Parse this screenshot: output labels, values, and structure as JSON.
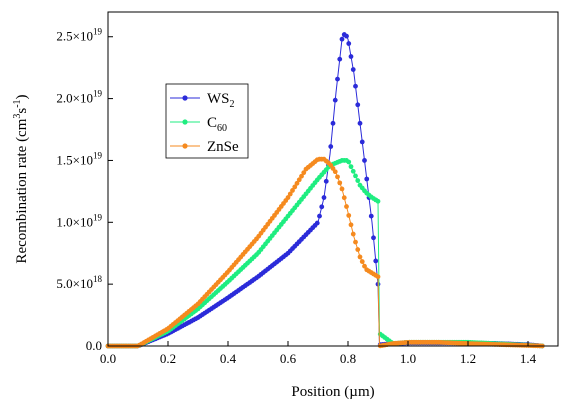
{
  "chart_data": {
    "type": "line",
    "xlabel": "Position (µm)",
    "ylabel_base": "Recombination rate (cm",
    "ylabel_sup1": "3",
    "ylabel_mid": "s",
    "ylabel_sup2": "-1",
    "ylabel_end": ")",
    "xlim": [
      0.0,
      1.5
    ],
    "ylim": [
      0,
      2.7e+19
    ],
    "grid": false,
    "legend_position": "upper-left",
    "x_ticks": [
      {
        "value": 0.0,
        "label": "0.0"
      },
      {
        "value": 0.2,
        "label": "0.2"
      },
      {
        "value": 0.4,
        "label": "0.4"
      },
      {
        "value": 0.6,
        "label": "0.6"
      },
      {
        "value": 0.8,
        "label": "0.8"
      },
      {
        "value": 1.0,
        "label": "1.0"
      },
      {
        "value": 1.2,
        "label": "1.2"
      },
      {
        "value": 1.4,
        "label": "1.4"
      }
    ],
    "y_ticks": [
      {
        "value": 0,
        "label": "0.0",
        "exp": ""
      },
      {
        "value": 5e+18,
        "label": "5.0×10",
        "exp": "18"
      },
      {
        "value": 1e+19,
        "label": "1.0×10",
        "exp": "19"
      },
      {
        "value": 1.5e+19,
        "label": "1.5×10",
        "exp": "19"
      },
      {
        "value": 2e+19,
        "label": "2.0×10",
        "exp": "19"
      },
      {
        "value": 2.5e+19,
        "label": "2.5×10",
        "exp": "19"
      }
    ],
    "series": [
      {
        "name": "WS",
        "name_sub": "2",
        "color": "#2b2bd9",
        "x": [
          0.0,
          0.1,
          0.2,
          0.3,
          0.4,
          0.5,
          0.6,
          0.7,
          0.72,
          0.74,
          0.76,
          0.78,
          0.79,
          0.8,
          0.82,
          0.84,
          0.86,
          0.88,
          0.89,
          0.9,
          0.905,
          0.95,
          1.0,
          1.1,
          1.2,
          1.3,
          1.4,
          1.45
        ],
        "y": [
          0.0,
          0.0,
          1e+18,
          2.3e+18,
          3.9e+18,
          5.6e+18,
          7.5e+18,
          1e+19,
          1.2e+19,
          1.55e+19,
          2.05e+19,
          2.48e+19,
          2.53e+19,
          2.48e+19,
          2.2e+19,
          1.8e+19,
          1.4e+19,
          1e+19,
          7.5e+18,
          5e+18,
          1e+17,
          2e+17,
          2.5e+17,
          2.5e+17,
          2.5e+17,
          2e+17,
          1e+17,
          0.0
        ]
      },
      {
        "name": "C",
        "name_sub": "60",
        "color": "#1fed80",
        "x": [
          0.0,
          0.1,
          0.2,
          0.3,
          0.4,
          0.5,
          0.6,
          0.7,
          0.74,
          0.78,
          0.8,
          0.82,
          0.84,
          0.86,
          0.88,
          0.9,
          0.905,
          0.95,
          1.0,
          1.2,
          1.45
        ],
        "y": [
          0.0,
          0.0,
          1.2e+18,
          3e+18,
          5.2e+18,
          7.5e+18,
          1.05e+19,
          1.35e+19,
          1.46e+19,
          1.5e+19,
          1.5e+19,
          1.4e+19,
          1.3e+19,
          1.24e+19,
          1.2e+19,
          1.17e+19,
          1e+18,
          2e+17,
          3e+17,
          3e+17,
          0.0
        ]
      },
      {
        "name": "ZnSe",
        "name_sub": "",
        "color": "#f58a1f",
        "x": [
          0.0,
          0.1,
          0.2,
          0.3,
          0.4,
          0.5,
          0.6,
          0.66,
          0.7,
          0.72,
          0.74,
          0.76,
          0.78,
          0.8,
          0.82,
          0.84,
          0.86,
          0.88,
          0.9,
          0.905,
          0.95,
          1.0,
          1.1,
          1.2,
          1.45
        ],
        "y": [
          0.0,
          0.0,
          1.4e+18,
          3.4e+18,
          6e+18,
          8.8e+18,
          1.2e+19,
          1.43e+19,
          1.51e+19,
          1.51e+19,
          1.47e+19,
          1.4e+19,
          1.27e+19,
          1.08e+19,
          8.8e+18,
          7.2e+18,
          6.2e+18,
          5.9e+18,
          5.6e+18,
          0.0,
          2e+17,
          3e+17,
          3e+17,
          2e+17,
          0.0
        ]
      }
    ]
  }
}
